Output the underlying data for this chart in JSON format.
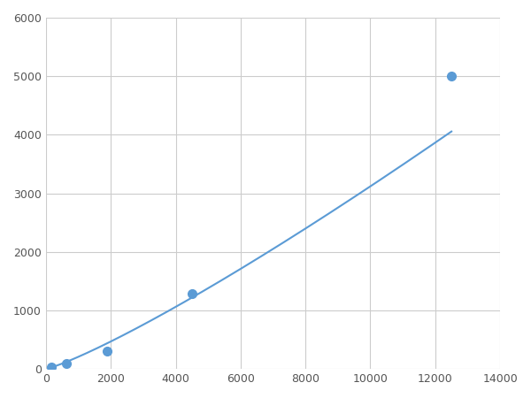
{
  "actual_x": [
    156,
    625,
    1875,
    4500,
    12500
  ],
  "actual_y": [
    30,
    100,
    310,
    1280,
    5000
  ],
  "line_color": "#5b9bd5",
  "marker_color": "#5b9bd5",
  "marker_size": 7,
  "line_width": 1.5,
  "xlim": [
    0,
    14000
  ],
  "ylim": [
    0,
    6000
  ],
  "xticks": [
    0,
    2000,
    4000,
    6000,
    8000,
    10000,
    12000,
    14000
  ],
  "yticks": [
    0,
    1000,
    2000,
    3000,
    4000,
    5000,
    6000
  ],
  "grid_color": "#cccccc",
  "background_color": "#ffffff",
  "figsize": [
    6.0,
    4.5
  ],
  "dpi": 100
}
